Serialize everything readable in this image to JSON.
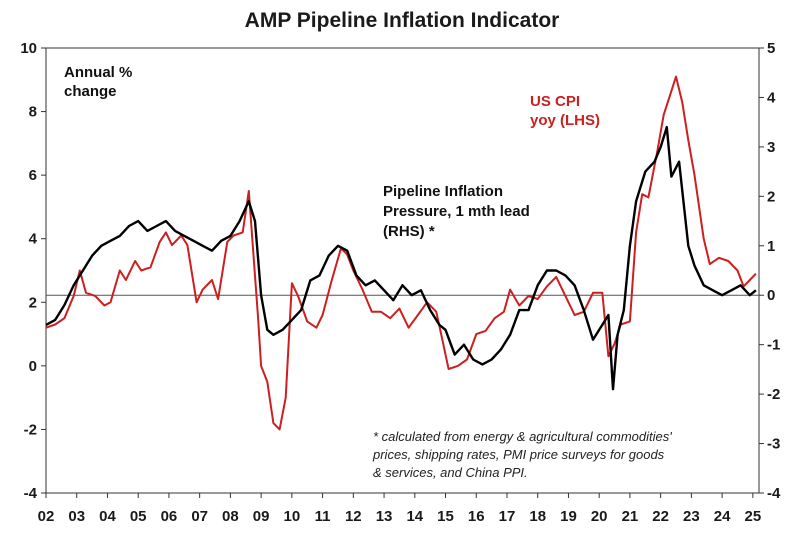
{
  "chart_data": {
    "type": "line",
    "title": "AMP Pipeline Inflation Indicator",
    "y_left_label": "Annual % change",
    "y_left_label_lines": [
      "Annual %",
      "change"
    ],
    "y_left_lim": [
      -4,
      10
    ],
    "y_left_ticks": [
      "10",
      "8",
      "6",
      "4",
      "2",
      "0",
      "-2",
      "-4"
    ],
    "y_right_lim": [
      -4,
      5
    ],
    "y_right_ticks": [
      "5",
      "4",
      "3",
      "2",
      "1",
      "0",
      "-1",
      "-2",
      "-3",
      "-4"
    ],
    "x_ticks": [
      "02",
      "03",
      "04",
      "05",
      "06",
      "07",
      "08",
      "09",
      "10",
      "11",
      "12",
      "13",
      "14",
      "15",
      "16",
      "17",
      "18",
      "19",
      "20",
      "21",
      "22",
      "23",
      "24",
      "25"
    ],
    "x_range_years": [
      2002.0,
      2025.2
    ],
    "colors": {
      "us_cpi": "#cc1f1f",
      "pipeline": "#000000",
      "axis": "#333333",
      "zero_line": "#555555"
    },
    "series": [
      {
        "name": "US CPI yoy (LHS)",
        "label_lines": [
          "US CPI",
          "yoy (LHS)"
        ],
        "axis": "left",
        "x": [
          2002.0,
          2002.3,
          2002.6,
          2002.9,
          2003.1,
          2003.3,
          2003.6,
          2003.9,
          2004.1,
          2004.4,
          2004.6,
          2004.9,
          2005.1,
          2005.4,
          2005.7,
          2005.9,
          2006.1,
          2006.4,
          2006.6,
          2006.9,
          2007.1,
          2007.4,
          2007.6,
          2007.9,
          2008.1,
          2008.4,
          2008.6,
          2008.9,
          2009.0,
          2009.2,
          2009.4,
          2009.6,
          2009.8,
          2010.0,
          2010.2,
          2010.5,
          2010.8,
          2011.0,
          2011.3,
          2011.6,
          2011.8,
          2012.0,
          2012.3,
          2012.6,
          2012.9,
          2013.2,
          2013.5,
          2013.8,
          2014.1,
          2014.4,
          2014.7,
          2014.9,
          2015.1,
          2015.4,
          2015.7,
          2016.0,
          2016.3,
          2016.6,
          2016.9,
          2017.1,
          2017.4,
          2017.7,
          2018.0,
          2018.3,
          2018.6,
          2018.9,
          2019.2,
          2019.5,
          2019.8,
          2020.1,
          2020.3,
          2020.5,
          2020.7,
          2021.0,
          2021.2,
          2021.4,
          2021.6,
          2021.9,
          2022.1,
          2022.3,
          2022.5,
          2022.7,
          2022.9,
          2023.1,
          2023.4,
          2023.6,
          2023.9,
          2024.2,
          2024.5,
          2024.7,
          2024.9,
          2025.1
        ],
        "values": [
          1.2,
          1.3,
          1.5,
          2.2,
          3.0,
          2.3,
          2.2,
          1.9,
          2.0,
          3.0,
          2.7,
          3.3,
          3.0,
          3.1,
          3.9,
          4.2,
          3.8,
          4.1,
          3.8,
          2.0,
          2.4,
          2.7,
          2.1,
          3.9,
          4.1,
          4.2,
          5.5,
          1.5,
          0.0,
          -0.5,
          -1.8,
          -2.0,
          -1.0,
          2.6,
          2.2,
          1.4,
          1.2,
          1.6,
          2.7,
          3.7,
          3.5,
          3.0,
          2.4,
          1.7,
          1.7,
          1.5,
          1.8,
          1.2,
          1.6,
          2.0,
          1.7,
          0.8,
          -0.1,
          0.0,
          0.2,
          1.0,
          1.1,
          1.5,
          1.7,
          2.4,
          1.9,
          2.2,
          2.1,
          2.5,
          2.8,
          2.2,
          1.6,
          1.7,
          2.3,
          2.3,
          0.3,
          0.7,
          1.3,
          1.4,
          4.2,
          5.4,
          5.3,
          6.8,
          7.9,
          8.5,
          9.1,
          8.3,
          7.1,
          6.0,
          4.0,
          3.2,
          3.4,
          3.3,
          3.0,
          2.5,
          2.7,
          2.9
        ]
      },
      {
        "name": "Pipeline Inflation Pressure, 1 mth lead (RHS) *",
        "label_lines": [
          "Pipeline Inflation",
          "Pressure, 1 mth lead",
          "(RHS) *"
        ],
        "axis": "right",
        "x": [
          2002.0,
          2002.3,
          2002.6,
          2002.9,
          2003.2,
          2003.5,
          2003.8,
          2004.1,
          2004.4,
          2004.7,
          2005.0,
          2005.3,
          2005.6,
          2005.9,
          2006.2,
          2006.5,
          2006.8,
          2007.1,
          2007.4,
          2007.7,
          2008.0,
          2008.3,
          2008.6,
          2008.8,
          2009.0,
          2009.2,
          2009.4,
          2009.7,
          2010.0,
          2010.3,
          2010.6,
          2010.9,
          2011.2,
          2011.5,
          2011.8,
          2012.1,
          2012.4,
          2012.7,
          2013.0,
          2013.3,
          2013.6,
          2013.9,
          2014.2,
          2014.5,
          2014.8,
          2015.0,
          2015.3,
          2015.6,
          2015.9,
          2016.2,
          2016.5,
          2016.8,
          2017.1,
          2017.4,
          2017.7,
          2018.0,
          2018.3,
          2018.6,
          2018.9,
          2019.2,
          2019.5,
          2019.8,
          2020.1,
          2020.3,
          2020.45,
          2020.6,
          2020.8,
          2021.0,
          2021.2,
          2021.5,
          2021.8,
          2022.0,
          2022.2,
          2022.35,
          2022.6,
          2022.9,
          2023.1,
          2023.4,
          2023.7,
          2024.0,
          2024.3,
          2024.6,
          2024.9,
          2025.1
        ],
        "values": [
          -0.6,
          -0.5,
          -0.2,
          0.2,
          0.5,
          0.8,
          1.0,
          1.1,
          1.2,
          1.4,
          1.5,
          1.3,
          1.4,
          1.5,
          1.3,
          1.2,
          1.1,
          1.0,
          0.9,
          1.1,
          1.2,
          1.5,
          1.9,
          1.5,
          0.0,
          -0.7,
          -0.8,
          -0.7,
          -0.5,
          -0.3,
          0.3,
          0.4,
          0.8,
          1.0,
          0.9,
          0.4,
          0.2,
          0.3,
          0.1,
          -0.1,
          0.2,
          0.0,
          0.1,
          -0.3,
          -0.6,
          -0.7,
          -1.2,
          -1.0,
          -1.3,
          -1.4,
          -1.3,
          -1.1,
          -0.8,
          -0.3,
          -0.3,
          0.2,
          0.5,
          0.5,
          0.4,
          0.2,
          -0.3,
          -0.9,
          -0.6,
          -0.4,
          -1.9,
          -0.8,
          -0.3,
          1.0,
          1.9,
          2.5,
          2.7,
          3.0,
          3.4,
          2.4,
          2.7,
          1.0,
          0.6,
          0.2,
          0.1,
          0.0,
          0.1,
          0.2,
          0.0,
          0.1
        ]
      }
    ],
    "footnote_lines": [
      "* calculated from energy & agricultural commodities'",
      "prices, shipping rates, PMI price surveys for goods",
      "& services, and China PPI."
    ],
    "grid": false
  }
}
